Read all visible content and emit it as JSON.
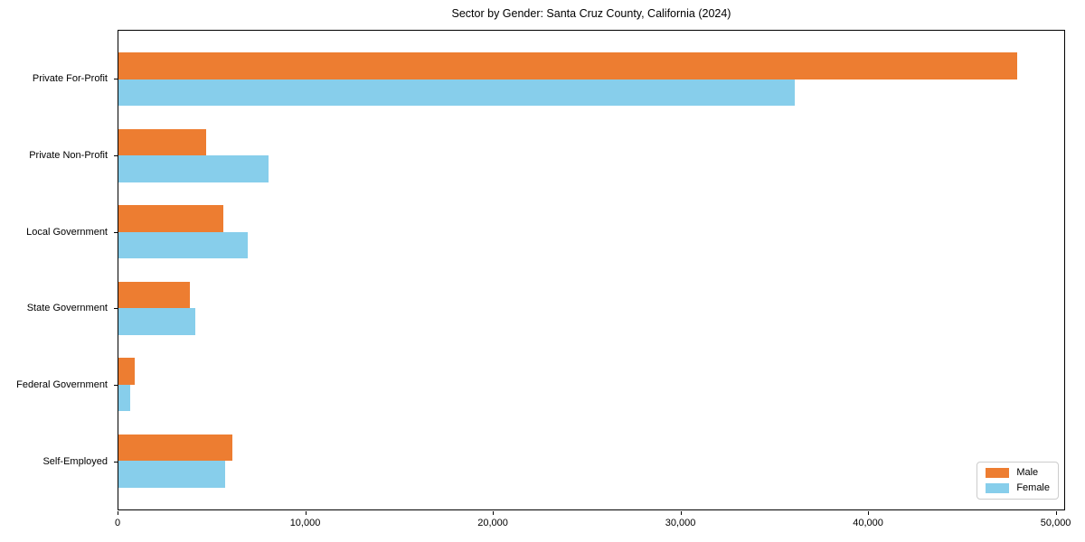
{
  "chart_data": {
    "type": "bar",
    "orientation": "horizontal",
    "title": "Sector by Gender: Santa Cruz County, California (2024)",
    "categories": [
      "Private For-Profit",
      "Private Non-Profit",
      "Local Government",
      "State Government",
      "Federal Government",
      "Self-Employed"
    ],
    "series": [
      {
        "name": "Male",
        "color": "#ED7D31",
        "values": [
          48000,
          4700,
          5600,
          3800,
          870,
          6100
        ]
      },
      {
        "name": "Female",
        "color": "#87CEEB",
        "values": [
          36100,
          8000,
          6900,
          4100,
          630,
          5700
        ]
      }
    ],
    "xlim": [
      0,
      50500
    ],
    "x_ticks": [
      0,
      10000,
      20000,
      30000,
      40000,
      50000
    ],
    "x_tick_labels": [
      "0",
      "10,000",
      "20,000",
      "30,000",
      "40,000",
      "50,000"
    ],
    "ylabel": "",
    "xlabel": "",
    "grid": false,
    "legend_position": "lower right",
    "accent_colors": {
      "male": "#ED7D31",
      "female": "#87CEEB",
      "spine": "#000000"
    }
  }
}
